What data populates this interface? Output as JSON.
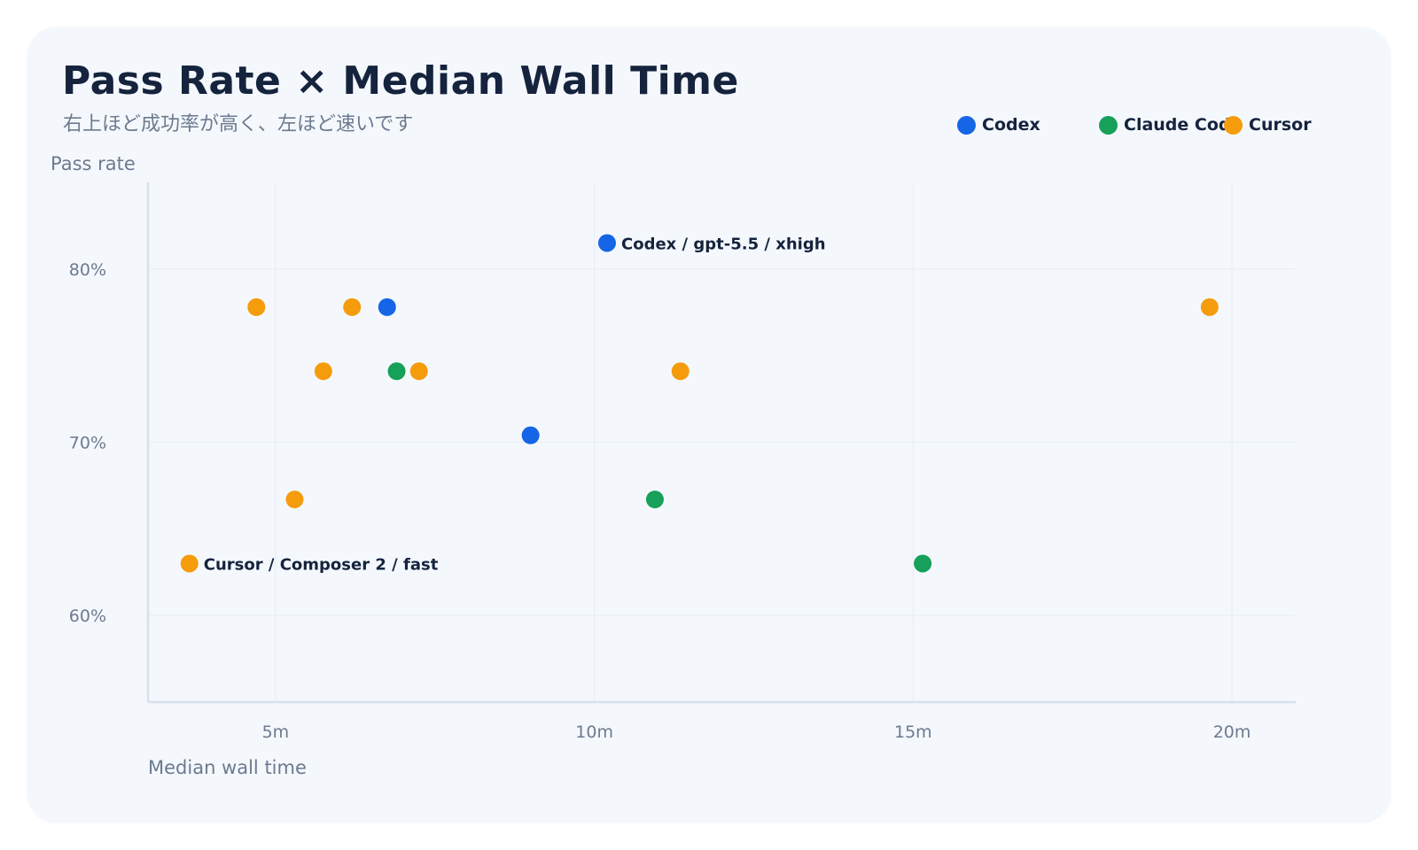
{
  "header": {
    "title": "Pass Rate × Median Wall Time",
    "subtitle": "右上ほど成功率が高く、左ほど速いです"
  },
  "legend": [
    {
      "name": "Codex",
      "color": "#1565e6"
    },
    {
      "name": "Claude Code",
      "color": "#16a05a"
    },
    {
      "name": "Cursor",
      "color": "#f59c0c"
    }
  ],
  "chart_data": {
    "type": "scatter",
    "xlabel": "Median wall time",
    "ylabel": "Pass rate",
    "xlim": [
      3,
      21
    ],
    "ylim": [
      55,
      85
    ],
    "x_unit": "m",
    "y_unit": "%",
    "xticks": [
      5,
      10,
      15,
      20
    ],
    "yticks": [
      60,
      70,
      80
    ],
    "x_tick_labels": [
      "5m",
      "10m",
      "15m",
      "20m"
    ],
    "y_tick_labels": [
      "60%",
      "70%",
      "80%"
    ],
    "grid": true,
    "legend_position": "top-right",
    "series": [
      {
        "name": "Codex",
        "color": "#1565e6",
        "points": [
          {
            "x": 10.2,
            "y": 81.5,
            "label": "Codex / gpt-5.5 / xhigh"
          },
          {
            "x": 6.75,
            "y": 77.8
          },
          {
            "x": 9.0,
            "y": 70.4
          }
        ]
      },
      {
        "name": "Claude Code",
        "color": "#16a05a",
        "points": [
          {
            "x": 6.9,
            "y": 74.1
          },
          {
            "x": 10.95,
            "y": 66.7
          },
          {
            "x": 15.15,
            "y": 63.0
          }
        ]
      },
      {
        "name": "Cursor",
        "color": "#f59c0c",
        "points": [
          {
            "x": 3.65,
            "y": 63.0,
            "label": "Cursor / Composer 2 / fast"
          },
          {
            "x": 4.7,
            "y": 77.8
          },
          {
            "x": 6.2,
            "y": 77.8
          },
          {
            "x": 5.75,
            "y": 74.1
          },
          {
            "x": 7.25,
            "y": 74.1
          },
          {
            "x": 11.35,
            "y": 74.1
          },
          {
            "x": 5.3,
            "y": 66.7
          },
          {
            "x": 19.65,
            "y": 77.8
          }
        ]
      }
    ]
  }
}
